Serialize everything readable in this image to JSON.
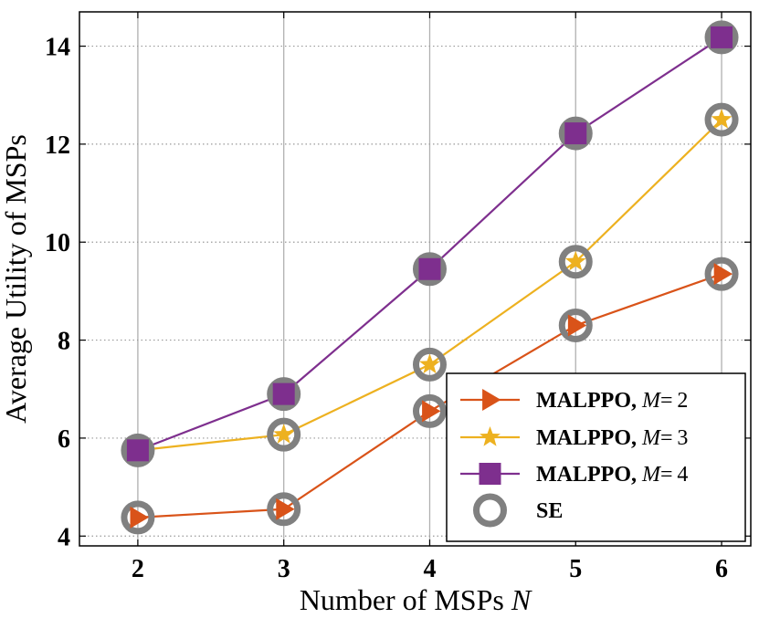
{
  "chart_data": {
    "type": "line",
    "xlabel": "Number of MSPs",
    "xlabel_var": "N",
    "ylabel": "Average Utility of MSPs",
    "x": [
      2,
      3,
      4,
      5,
      6
    ],
    "xlim": [
      1.6,
      6.2
    ],
    "ylim": [
      3.8,
      14.7
    ],
    "xticks": [
      "2",
      "3",
      "4",
      "5",
      "6"
    ],
    "yticks": [
      4,
      6,
      8,
      10,
      12,
      14
    ],
    "ytick_labels": [
      "4",
      "6",
      "8",
      "10",
      "12",
      "14"
    ],
    "grid": "x-solid, y-dotted",
    "legend_position": "bottom-right",
    "series": [
      {
        "name": "MALPPO, M = 2",
        "name_prefix": "MALPPO,",
        "var": "M",
        "eq": "= 2",
        "values": [
          4.38,
          4.55,
          6.55,
          8.3,
          9.35
        ],
        "color": "#D95319",
        "marker": "triangle-right"
      },
      {
        "name": "MALPPO, M = 3",
        "name_prefix": "MALPPO,",
        "var": "M",
        "eq": "= 3",
        "values": [
          5.75,
          6.07,
          7.5,
          9.6,
          12.5
        ],
        "color": "#EDB120",
        "marker": "star"
      },
      {
        "name": "MALPPO, M = 4",
        "name_prefix": "MALPPO,",
        "var": "M",
        "eq": "= 4",
        "values": [
          5.75,
          6.9,
          9.45,
          12.22,
          14.18
        ],
        "color": "#7E2F8E",
        "marker": "square"
      }
    ],
    "se": {
      "name": "SE",
      "color": "#808080",
      "marker": "open-circle",
      "points": [
        [
          2,
          4.38
        ],
        [
          3,
          4.55
        ],
        [
          4,
          6.55
        ],
        [
          5,
          8.3
        ],
        [
          6,
          9.35
        ],
        [
          2,
          5.75
        ],
        [
          3,
          6.07
        ],
        [
          4,
          7.5
        ],
        [
          5,
          9.6
        ],
        [
          6,
          12.5
        ],
        [
          3,
          6.9
        ],
        [
          4,
          9.45
        ],
        [
          5,
          12.22
        ],
        [
          6,
          14.18
        ]
      ]
    }
  }
}
